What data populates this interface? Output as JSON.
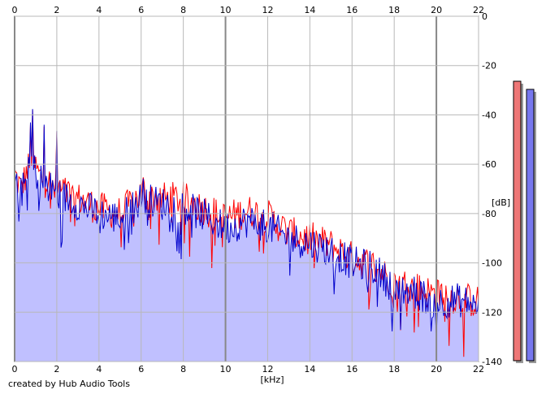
{
  "credit": "created by Hub Audio Tools",
  "chart_data": {
    "type": "line",
    "xlabel": "[kHz]",
    "ylabel": "[dB]",
    "xlim": [
      0,
      22
    ],
    "ylim": [
      -140,
      0
    ],
    "x_ticks": [
      0,
      2,
      4,
      6,
      8,
      10,
      12,
      14,
      16,
      18,
      20,
      22
    ],
    "y_ticks": [
      0,
      -20,
      -40,
      -60,
      -80,
      -100,
      -120,
      -140
    ],
    "grid": true,
    "x_step_khz": 0.05,
    "series": [
      {
        "channel": "left",
        "color": "#ff0000",
        "anchors_khz": [
          0,
          0.3,
          0.8,
          1.2,
          2,
          3,
          4,
          5,
          6,
          7,
          8,
          9,
          10,
          11,
          12,
          13,
          14,
          15,
          16,
          17,
          18,
          19,
          20,
          21,
          22
        ],
        "anchors_db": [
          -64,
          -70,
          -58,
          -65,
          -70,
          -74,
          -78,
          -80,
          -72,
          -74,
          -74,
          -78,
          -82,
          -79,
          -81,
          -88,
          -90,
          -93,
          -98,
          -101,
          -108,
          -110,
          -113,
          -114,
          -116
        ]
      },
      {
        "channel": "right",
        "color": "#0000cc",
        "fill": "#c0c0ff",
        "anchors_khz": [
          0,
          0.3,
          0.8,
          1.2,
          2,
          3,
          4,
          5,
          6,
          7,
          8,
          9,
          10,
          11,
          12,
          13,
          14,
          15,
          16,
          17,
          18,
          19,
          20,
          21,
          22
        ],
        "anchors_db": [
          -66,
          -72,
          -60,
          -66,
          -72,
          -76,
          -80,
          -82,
          -74,
          -76,
          -77,
          -81,
          -86,
          -83,
          -85,
          -90,
          -92,
          -95,
          -100,
          -102,
          -110,
          -112,
          -116,
          -115,
          -117
        ]
      }
    ],
    "peaks": {
      "khz": [
        0.85,
        0.75,
        1.4,
        2.0,
        6.1,
        20.0,
        18.3
      ],
      "db": [
        -38,
        -43,
        -44,
        -47,
        -66,
        -129,
        -128
      ]
    },
    "level_meters": [
      {
        "channel": "left",
        "color": "#ee7777",
        "level_db": -27
      },
      {
        "channel": "right",
        "color": "#7777ee",
        "level_db": -30
      }
    ]
  }
}
